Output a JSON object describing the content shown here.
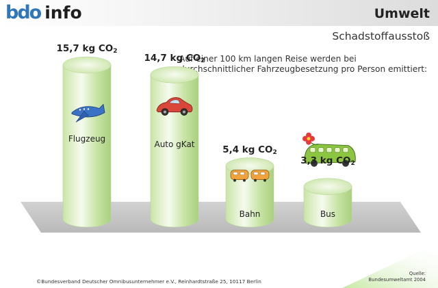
{
  "header": {
    "logo_part1": "bdo",
    "logo_part2": "info",
    "section_title": "Umwelt"
  },
  "subtitle": "Schadstoffausstoß",
  "description": "Auf einer 100 km langen Reise werden bei durchschnittlicher Fahrzeugbesetzung pro Person emittiert:",
  "chart_data": {
    "type": "bar",
    "title": "Schadstoffausstoß",
    "categories": [
      "Flugzeug",
      "Auto gKat",
      "Bahn",
      "Bus"
    ],
    "values": [
      15.7,
      14.7,
      5.4,
      3.3
    ],
    "value_labels": [
      "15,7 kg CO",
      "14,7 kg CO",
      "5,4 kg CO",
      "3,3 kg CO"
    ],
    "value_subscript": "2",
    "unit": "kg CO2",
    "ylim": [
      0,
      15.7
    ],
    "grid": false,
    "bar_style": "3d-cylinder",
    "bar_color": "#c9e4a6",
    "bar_highlight": "#f6fbef",
    "floor_color": "#cfcfcf",
    "icons": [
      "airplane-icon",
      "car-icon",
      "train-icon",
      "bus-icon"
    ]
  },
  "footer": {
    "copyright": "©Bundesverband Deutscher Omnibusunternehmer e.V., Reinhardtstraße 25, 10117 Berlin",
    "source_label": "Quelle:",
    "source_value": "Bundesumweltamt 2004"
  }
}
